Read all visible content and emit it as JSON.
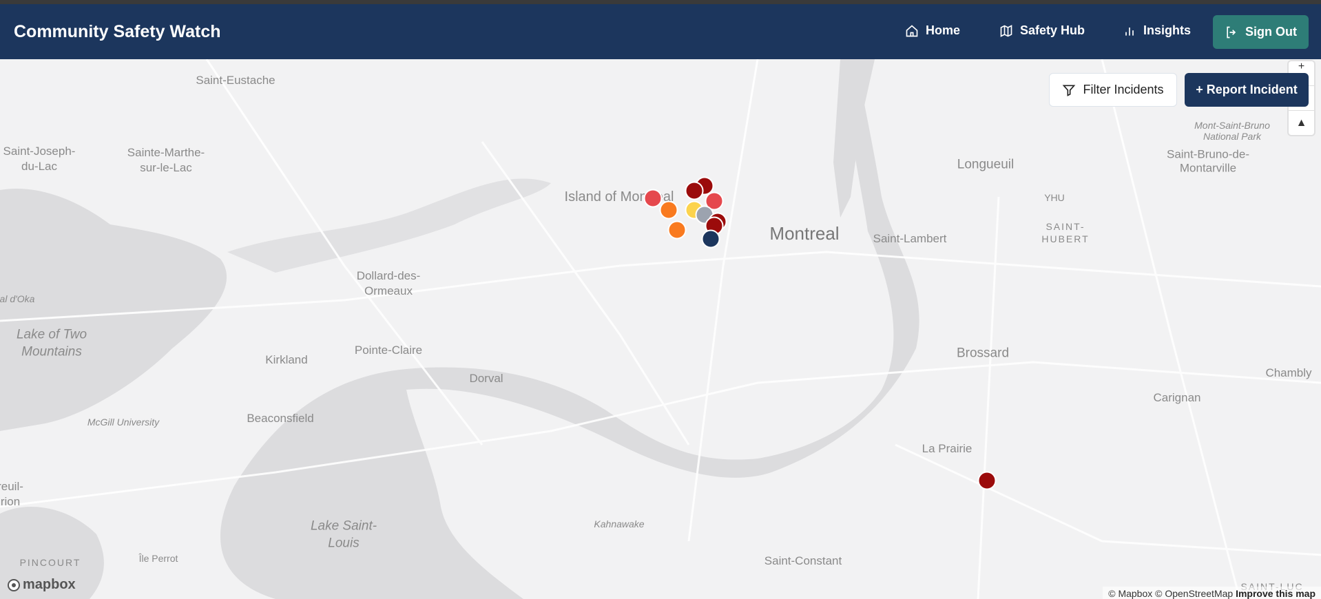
{
  "header": {
    "title": "Community Safety Watch",
    "nav": [
      {
        "label": "Home",
        "icon": "home-icon"
      },
      {
        "label": "Safety Hub",
        "icon": "map-icon"
      },
      {
        "label": "Insights",
        "icon": "bar-chart-icon"
      }
    ],
    "sign_out": "Sign Out"
  },
  "map": {
    "filter_label": "Filter Incidents",
    "report_label": "+ Report Incident",
    "zoom_in": "+",
    "compass": "▲",
    "labels": {
      "saint_eustache": "Saint-Eustache",
      "saint_joseph": "Saint-Joseph-du-Lac",
      "sainte_marthe": "Sainte-Marthe-sur-le-Lac",
      "oka": "al d'Oka",
      "island": "Island of Montreal",
      "montreal": "Montreal",
      "longueuil": "Longueuil",
      "yhu": "YHU",
      "saint_hubert": "SAINT-HUBERT",
      "saint_lambert": "Saint-Lambert",
      "mont_saint_bruno": "Mont-Saint-Bruno National Park",
      "saint_bruno": "Saint-Bruno-de-Montarville",
      "dollard": "Dollard-des-Ormeaux",
      "lake_two_mountains": "Lake of Two Mountains",
      "kirkland": "Kirkland",
      "pointe_claire": "Pointe-Claire",
      "dorval": "Dorval",
      "beaconsfield": "Beaconsfield",
      "mcgill": "McGill University",
      "brossard": "Brossard",
      "chambly": "Chambly",
      "carignan": "Carignan",
      "la_prairie": "La Prairie",
      "lake_saint_louis": "Lake Saint-Louis",
      "kahnawake": "Kahnawake",
      "saint_constant": "Saint-Constant",
      "ile_perrot": "Île Perrot",
      "pincourt": "PINCOURT",
      "saint_luc": "SAINT-LUC",
      "vaudreuil": "reuil-rion"
    },
    "marker_colors": {
      "light_red": "#e5484d",
      "orange": "#f97a1f",
      "dark_red": "#9b0b0b",
      "yellow": "#fcd34d",
      "gray": "#9ca3af",
      "navy": "#1c365d"
    },
    "markers": [
      "dark_red",
      "dark_red",
      "light_red",
      "orange",
      "orange",
      "yellow",
      "light_red",
      "gray",
      "dark_red",
      "dark_red",
      "navy",
      "dark_red"
    ],
    "logo": "mapbox",
    "attribution": "© Mapbox © OpenStreetMap",
    "improve": "Improve this map"
  }
}
